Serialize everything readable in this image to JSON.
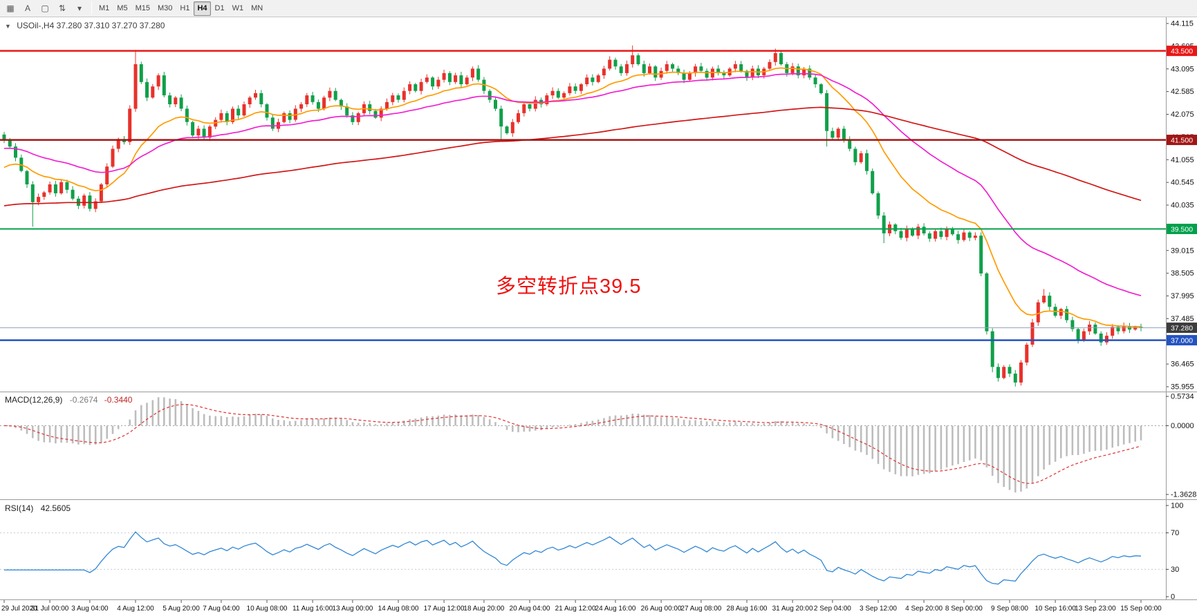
{
  "toolbar": {
    "icons": [
      {
        "name": "chart-window-icon",
        "glyph": "▦"
      },
      {
        "name": "text-annotation-tool-icon",
        "glyph": "A"
      },
      {
        "name": "rectangle-tool-icon",
        "glyph": "▢"
      },
      {
        "name": "scale-tool-icon",
        "glyph": "⇅"
      },
      {
        "name": "dropdown-caret-icon",
        "glyph": "▾"
      }
    ],
    "timeframes": [
      "M1",
      "M5",
      "M15",
      "M30",
      "H1",
      "H4",
      "D1",
      "W1",
      "MN"
    ],
    "active_timeframe": "H4"
  },
  "price_panel": {
    "collapse_icon": "▼",
    "header": "USOil-,H4  37.280 37.310 37.270 37.280",
    "annotation": {
      "text": "多空转折点39.5",
      "color": "#ee1111"
    }
  },
  "macd_panel": {
    "label": "MACD(12,26,9)",
    "main_value": "-0.2674",
    "signal_value": "-0.3440",
    "axis": {
      "max_label": "0.5734",
      "zero_label": "0.0000",
      "min_label": "-1.3628"
    }
  },
  "rsi_panel": {
    "label": "RSI(14)",
    "value": "42.5605",
    "axis_labels": [
      "100",
      "70",
      "30",
      "0"
    ]
  },
  "chart_data": {
    "type": "candlestick",
    "symbol": "USOil-",
    "timeframe": "H4",
    "quote": {
      "open": 37.28,
      "high": 37.31,
      "low": 37.27,
      "close": 37.28
    },
    "price_axis": {
      "min": 35.955,
      "max": 44.115,
      "tick_step": 0.51,
      "ticks": [
        "44.115",
        "43.605",
        "43.095",
        "42.585",
        "42.075",
        "41.565",
        "41.055",
        "40.545",
        "40.035",
        "39.525",
        "39.015",
        "38.505",
        "37.995",
        "37.485",
        "36.975",
        "36.465",
        "35.955"
      ]
    },
    "levels": [
      {
        "label": "43.500",
        "value": 43.5,
        "color": "#e81717",
        "line_width": 2.5
      },
      {
        "label": "41.500",
        "value": 41.5,
        "color": "#a31515",
        "line_width": 2.5
      },
      {
        "label": "39.500",
        "value": 39.5,
        "color": "#00a14b",
        "line_width": 2
      },
      {
        "label": "37.000",
        "value": 37.0,
        "color": "#2353c0",
        "line_width": 2.5
      }
    ],
    "current_price": {
      "label": "37.280",
      "value": 37.28,
      "line_color": "#8fa0bc",
      "tag_color": "#3c3c3c"
    },
    "moving_averages": [
      {
        "name": "fast-ma",
        "color": "#ff9b00",
        "period": 16,
        "seed": 40.8
      },
      {
        "name": "mid-ma",
        "color": "#f01fd0",
        "period": 40,
        "seed": 41.3
      },
      {
        "name": "slow-ma",
        "color": "#d01616",
        "period": 150,
        "seed": 40.0
      }
    ],
    "up_color": "#e8312b",
    "down_color": "#10a04a",
    "first_open": 41.62,
    "closes": [
      41.5,
      41.35,
      41.1,
      40.8,
      40.5,
      40.1,
      40.22,
      40.32,
      40.5,
      40.3,
      40.55,
      40.38,
      40.18,
      40.02,
      40.25,
      39.95,
      40.12,
      40.5,
      40.9,
      41.3,
      41.52,
      41.45,
      42.2,
      43.2,
      42.8,
      42.45,
      42.7,
      42.95,
      42.5,
      42.3,
      42.45,
      42.2,
      41.9,
      41.6,
      41.75,
      41.55,
      41.8,
      41.95,
      42.1,
      41.9,
      42.2,
      42.05,
      42.3,
      42.45,
      42.55,
      42.3,
      42.0,
      41.75,
      41.9,
      42.1,
      41.95,
      42.2,
      42.3,
      42.5,
      42.35,
      42.2,
      42.45,
      42.6,
      42.4,
      42.25,
      42.05,
      41.9,
      42.1,
      42.3,
      42.15,
      42.0,
      42.2,
      42.35,
      42.5,
      42.4,
      42.6,
      42.75,
      42.6,
      42.8,
      42.9,
      42.7,
      42.85,
      43.0,
      42.8,
      42.95,
      42.75,
      42.9,
      43.1,
      42.85,
      42.6,
      42.4,
      42.2,
      41.8,
      41.65,
      41.9,
      42.1,
      42.3,
      42.2,
      42.4,
      42.3,
      42.5,
      42.6,
      42.45,
      42.55,
      42.7,
      42.6,
      42.75,
      42.9,
      42.8,
      42.95,
      43.1,
      43.3,
      43.15,
      43.0,
      43.2,
      43.4,
      43.2,
      43.0,
      43.15,
      42.9,
      43.05,
      43.2,
      43.1,
      43.0,
      42.85,
      43.0,
      43.15,
      43.05,
      42.9,
      43.1,
      43.0,
      42.95,
      43.1,
      43.2,
      43.05,
      42.9,
      43.1,
      42.95,
      43.1,
      43.25,
      43.45,
      43.2,
      43.0,
      43.15,
      42.95,
      43.1,
      42.9,
      42.75,
      42.55,
      41.7,
      41.55,
      41.75,
      41.5,
      41.3,
      41.0,
      41.2,
      40.8,
      40.3,
      39.8,
      39.4,
      39.6,
      39.45,
      39.3,
      39.5,
      39.35,
      39.55,
      39.4,
      39.28,
      39.45,
      39.32,
      39.5,
      39.38,
      39.25,
      39.42,
      39.3,
      39.35,
      38.5,
      37.2,
      36.4,
      36.15,
      36.4,
      36.25,
      36.05,
      36.5,
      36.9,
      37.4,
      37.85,
      38.0,
      37.75,
      37.55,
      37.7,
      37.45,
      37.25,
      37.0,
      37.2,
      37.35,
      37.15,
      36.95,
      37.1,
      37.3,
      37.2,
      37.32,
      37.24,
      37.3,
      37.28
    ],
    "wick_overrides": {
      "5": {
        "l": 39.55
      },
      "23": {
        "h": 43.52
      },
      "87": {
        "l": 41.48
      },
      "110": {
        "h": 43.62
      },
      "135": {
        "h": 43.55
      },
      "144": {
        "l": 41.35
      },
      "154": {
        "l": 39.18
      },
      "173": {
        "l": 36.28
      },
      "177": {
        "l": 35.96
      },
      "182": {
        "h": 38.15
      }
    },
    "time_labels": [
      "29 Jul 2020",
      "31 Jul 00:00",
      "3 Aug 04:00",
      "4 Aug 12:00",
      "5 Aug 20:00",
      "7 Aug 04:00",
      "10 Aug 08:00",
      "11 Aug 16:00",
      "13 Aug 00:00",
      "14 Aug 08:00",
      "17 Aug 12:00",
      "18 Aug 20:00",
      "20 Aug 04:00",
      "21 Aug 12:00",
      "24 Aug 16:00",
      "26 Aug 00:00",
      "27 Aug 08:00",
      "28 Aug 16:00",
      "31 Aug 20:00",
      "2 Sep 04:00",
      "3 Sep 12:00",
      "4 Sep 20:00",
      "8 Sep 00:00",
      "9 Sep 08:00",
      "10 Sep 16:00",
      "13 Sep 23:00",
      "15 Sep 00:00"
    ],
    "macd": {
      "fast": 12,
      "slow": 26,
      "signal": 9,
      "histogram_color": "#bdbdbd",
      "signal_color": "#e03030"
    },
    "rsi": {
      "period": 14,
      "color": "#2f86d5",
      "levels": [
        30,
        70
      ]
    }
  }
}
